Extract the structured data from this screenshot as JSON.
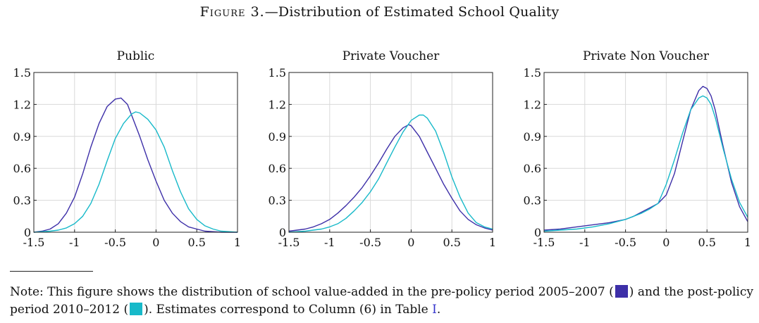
{
  "figure": {
    "label": "Figure 3.",
    "title_rest": "—Distribution of Estimated School Quality"
  },
  "colors": {
    "pre_policy": "#3d2fa8",
    "post_policy": "#17b9c9",
    "grid": "#d9d9d9",
    "axis": "#222222",
    "link": "#3333cc"
  },
  "chart_data": [
    {
      "type": "line",
      "title": "Public",
      "xlim": [
        -1.5,
        1
      ],
      "ylim": [
        0,
        1.5
      ],
      "xticks": [
        -1.5,
        -1,
        -0.5,
        0,
        0.5,
        1
      ],
      "xtick_labels": [
        "-1.5",
        "-1",
        "-0.5",
        "0",
        "0.5",
        "1"
      ],
      "yticks": [
        0,
        0.3,
        0.6,
        0.9,
        1.2,
        1.5
      ],
      "ytick_labels": [
        "0",
        "0.3",
        "0.6",
        "0.9",
        "1.2",
        "1.5"
      ],
      "grid": true,
      "series": [
        {
          "color": "#3d2fa8",
          "x": [
            -1.5,
            -1.4,
            -1.3,
            -1.2,
            -1.1,
            -1.0,
            -0.9,
            -0.8,
            -0.7,
            -0.6,
            -0.5,
            -0.43,
            -0.35,
            -0.3,
            -0.2,
            -0.1,
            0.0,
            0.1,
            0.2,
            0.3,
            0.4,
            0.5,
            0.6,
            0.7,
            0.8,
            0.9,
            1.0
          ],
          "y": [
            0.0,
            0.01,
            0.03,
            0.08,
            0.18,
            0.33,
            0.55,
            0.8,
            1.02,
            1.18,
            1.25,
            1.26,
            1.2,
            1.1,
            0.9,
            0.68,
            0.48,
            0.3,
            0.18,
            0.1,
            0.05,
            0.03,
            0.01,
            0.005,
            0.0,
            0.0,
            0.0
          ]
        },
        {
          "color": "#17b9c9",
          "x": [
            -1.5,
            -1.4,
            -1.3,
            -1.2,
            -1.1,
            -1.0,
            -0.9,
            -0.8,
            -0.7,
            -0.6,
            -0.5,
            -0.4,
            -0.3,
            -0.25,
            -0.2,
            -0.1,
            0.0,
            0.1,
            0.2,
            0.3,
            0.4,
            0.5,
            0.6,
            0.7,
            0.8,
            0.9,
            1.0
          ],
          "y": [
            0.0,
            0.005,
            0.01,
            0.02,
            0.04,
            0.08,
            0.15,
            0.27,
            0.45,
            0.67,
            0.88,
            1.02,
            1.11,
            1.13,
            1.12,
            1.06,
            0.96,
            0.8,
            0.58,
            0.38,
            0.22,
            0.12,
            0.06,
            0.03,
            0.01,
            0.005,
            0.0
          ]
        }
      ]
    },
    {
      "type": "line",
      "title": "Private Voucher",
      "xlim": [
        -1.5,
        1
      ],
      "ylim": [
        0,
        1.5
      ],
      "xticks": [
        -1.5,
        -1,
        -0.5,
        0,
        0.5,
        1
      ],
      "xtick_labels": [
        "-1.5",
        "-1",
        "-0.5",
        "0",
        "0.5",
        "1"
      ],
      "yticks": [
        0,
        0.3,
        0.6,
        0.9,
        1.2,
        1.5
      ],
      "ytick_labels": [
        "0",
        "0.3",
        "0.6",
        "0.9",
        "1.2",
        "1.5"
      ],
      "grid": true,
      "series": [
        {
          "color": "#3d2fa8",
          "x": [
            -1.5,
            -1.4,
            -1.3,
            -1.2,
            -1.1,
            -1.0,
            -0.9,
            -0.8,
            -0.7,
            -0.6,
            -0.5,
            -0.4,
            -0.3,
            -0.2,
            -0.1,
            -0.03,
            0.0,
            0.1,
            0.2,
            0.3,
            0.4,
            0.5,
            0.6,
            0.7,
            0.8,
            0.9,
            1.0
          ],
          "y": [
            0.01,
            0.02,
            0.03,
            0.05,
            0.08,
            0.12,
            0.18,
            0.25,
            0.33,
            0.42,
            0.53,
            0.65,
            0.78,
            0.9,
            0.98,
            1.01,
            1.0,
            0.9,
            0.75,
            0.6,
            0.45,
            0.32,
            0.2,
            0.12,
            0.07,
            0.04,
            0.02
          ]
        },
        {
          "color": "#17b9c9",
          "x": [
            -1.5,
            -1.4,
            -1.3,
            -1.2,
            -1.1,
            -1.0,
            -0.9,
            -0.8,
            -0.7,
            -0.6,
            -0.5,
            -0.4,
            -0.3,
            -0.2,
            -0.1,
            0.0,
            0.1,
            0.15,
            0.2,
            0.3,
            0.4,
            0.5,
            0.6,
            0.7,
            0.8,
            0.9,
            1.0
          ],
          "y": [
            0.0,
            0.005,
            0.01,
            0.02,
            0.03,
            0.05,
            0.08,
            0.13,
            0.2,
            0.28,
            0.38,
            0.5,
            0.65,
            0.8,
            0.94,
            1.05,
            1.1,
            1.1,
            1.07,
            0.95,
            0.75,
            0.52,
            0.33,
            0.18,
            0.09,
            0.05,
            0.03
          ]
        }
      ]
    },
    {
      "type": "line",
      "title": "Private Non Voucher",
      "xlim": [
        -1.5,
        1
      ],
      "ylim": [
        0,
        1.5
      ],
      "xticks": [
        -1.5,
        -1,
        -0.5,
        0,
        0.5,
        1
      ],
      "xtick_labels": [
        "-1.5",
        "-1",
        "-0.5",
        "0",
        "0.5",
        "1"
      ],
      "yticks": [
        0,
        0.3,
        0.6,
        0.9,
        1.2,
        1.5
      ],
      "ytick_labels": [
        "0",
        "0.3",
        "0.6",
        "0.9",
        "1.2",
        "1.5"
      ],
      "grid": true,
      "series": [
        {
          "color": "#3d2fa8",
          "x": [
            -1.5,
            -1.3,
            -1.1,
            -0.9,
            -0.7,
            -0.5,
            -0.4,
            -0.3,
            -0.2,
            -0.1,
            0.0,
            0.1,
            0.2,
            0.3,
            0.4,
            0.45,
            0.5,
            0.55,
            0.6,
            0.7,
            0.8,
            0.9,
            1.0
          ],
          "y": [
            0.02,
            0.03,
            0.05,
            0.07,
            0.09,
            0.12,
            0.15,
            0.19,
            0.23,
            0.27,
            0.35,
            0.55,
            0.85,
            1.15,
            1.33,
            1.37,
            1.35,
            1.28,
            1.15,
            0.8,
            0.47,
            0.24,
            0.1
          ]
        },
        {
          "color": "#17b9c9",
          "x": [
            -1.5,
            -1.3,
            -1.1,
            -0.9,
            -0.7,
            -0.5,
            -0.4,
            -0.3,
            -0.2,
            -0.1,
            0.0,
            0.1,
            0.2,
            0.3,
            0.4,
            0.45,
            0.5,
            0.55,
            0.6,
            0.7,
            0.8,
            0.9,
            1.0
          ],
          "y": [
            0.01,
            0.02,
            0.03,
            0.05,
            0.08,
            0.12,
            0.15,
            0.18,
            0.22,
            0.27,
            0.45,
            0.68,
            0.93,
            1.15,
            1.26,
            1.28,
            1.26,
            1.2,
            1.08,
            0.78,
            0.5,
            0.28,
            0.14
          ]
        }
      ]
    }
  ],
  "note": {
    "part1": "Note: This figure shows the distribution of school value-added in the pre-policy period 2005–2007 (",
    "part2": ") and the post-policy period 2010–2012 (",
    "part3": "). Estimates correspond to Column (6) in Table ",
    "table_ref": "I",
    "part4": "."
  }
}
